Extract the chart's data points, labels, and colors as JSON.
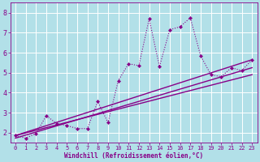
{
  "xlabel": "Windchill (Refroidissement éolien,°C)",
  "bg_color": "#b2e0e8",
  "line_color": "#880088",
  "x_data": [
    0,
    1,
    2,
    3,
    4,
    5,
    6,
    7,
    8,
    9,
    10,
    11,
    12,
    13,
    14,
    15,
    16,
    17,
    18,
    19,
    20,
    21,
    22,
    23
  ],
  "y_data": [
    1.85,
    1.72,
    1.95,
    2.85,
    2.45,
    2.35,
    2.2,
    2.2,
    3.55,
    2.5,
    4.6,
    5.45,
    5.35,
    7.7,
    5.3,
    7.15,
    7.3,
    7.75,
    5.85,
    4.9,
    4.8,
    5.25,
    5.1,
    5.65
  ],
  "trend1_x": [
    0,
    23
  ],
  "trend1_y": [
    1.85,
    5.65
  ],
  "trend2_x": [
    0,
    23
  ],
  "trend2_y": [
    1.85,
    4.9
  ],
  "trend3_x": [
    0,
    23
  ],
  "trend3_y": [
    1.72,
    5.25
  ],
  "xlim": [
    -0.5,
    23.5
  ],
  "ylim": [
    1.5,
    8.5
  ],
  "xticks": [
    0,
    1,
    2,
    3,
    4,
    5,
    6,
    7,
    8,
    9,
    10,
    11,
    12,
    13,
    14,
    15,
    16,
    17,
    18,
    19,
    20,
    21,
    22,
    23
  ],
  "yticks": [
    2,
    3,
    4,
    5,
    6,
    7,
    8
  ],
  "xlabel_fontsize": 5.5,
  "tick_fontsize_x": 5.0,
  "tick_fontsize_y": 6.0
}
